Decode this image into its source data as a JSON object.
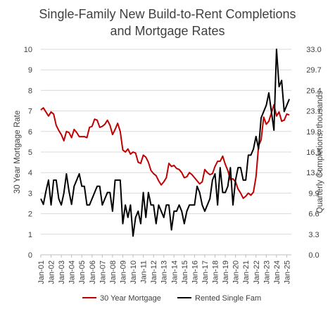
{
  "chart_data": {
    "type": "line",
    "title_lines": [
      "Single-Family New Build-to-Rent Completions",
      "and Mortgage Rates"
    ],
    "ylabel_left": "30 Year Mortgage Rate",
    "ylabel_right": "Quarterly Completions, thousands",
    "ylim_left": [
      0,
      10
    ],
    "ylim_right": [
      0,
      33
    ],
    "yticks_left": [
      "0",
      "1",
      "2",
      "3",
      "4",
      "5",
      "6",
      "7",
      "8",
      "9",
      "10"
    ],
    "yticks_right": [
      "0.0",
      "3.3",
      "6.6",
      "9.9",
      "13.2",
      "16.5",
      "19.8",
      "23.1",
      "26.4",
      "29.7",
      "33.0"
    ],
    "xlim": [
      2001,
      2025.45
    ],
    "xtick_labels": [
      "Jan-01",
      "Jan-02",
      "Jan-03",
      "Jan-04",
      "Jan-05",
      "Jan-06",
      "Jan-07",
      "Jan-08",
      "Jan-09",
      "Jan-10",
      "Jan-11",
      "Jan-12",
      "Jan-13",
      "Jan-14",
      "Jan-15",
      "Jan-16",
      "Jan-17",
      "Jan-18",
      "Jan-19",
      "Jan-20",
      "Jan-21",
      "Jan-22",
      "Jan-23",
      "Jan-24",
      "Jan-25"
    ],
    "grid": true,
    "legend_position": "bottom",
    "series": [
      {
        "name": "30 Year Mortgage",
        "axis": "left",
        "color": "#c00000",
        "points": [
          [
            2001.0,
            7.05
          ],
          [
            2001.25,
            7.15
          ],
          [
            2001.5,
            6.95
          ],
          [
            2001.75,
            6.75
          ],
          [
            2002.0,
            6.95
          ],
          [
            2002.25,
            6.85
          ],
          [
            2002.5,
            6.3
          ],
          [
            2002.75,
            6.05
          ],
          [
            2003.0,
            5.85
          ],
          [
            2003.25,
            5.55
          ],
          [
            2003.5,
            6.0
          ],
          [
            2003.75,
            5.95
          ],
          [
            2004.0,
            5.7
          ],
          [
            2004.25,
            6.1
          ],
          [
            2004.5,
            5.95
          ],
          [
            2004.75,
            5.75
          ],
          [
            2005.0,
            5.75
          ],
          [
            2005.25,
            5.75
          ],
          [
            2005.5,
            5.7
          ],
          [
            2005.75,
            6.2
          ],
          [
            2006.0,
            6.25
          ],
          [
            2006.25,
            6.6
          ],
          [
            2006.5,
            6.55
          ],
          [
            2006.75,
            6.2
          ],
          [
            2007.0,
            6.25
          ],
          [
            2007.25,
            6.35
          ],
          [
            2007.5,
            6.55
          ],
          [
            2007.75,
            6.3
          ],
          [
            2008.0,
            5.85
          ],
          [
            2008.25,
            6.1
          ],
          [
            2008.5,
            6.4
          ],
          [
            2008.75,
            6.0
          ],
          [
            2009.0,
            5.1
          ],
          [
            2009.25,
            5.0
          ],
          [
            2009.5,
            5.15
          ],
          [
            2009.75,
            4.9
          ],
          [
            2010.0,
            5.0
          ],
          [
            2010.25,
            4.95
          ],
          [
            2010.5,
            4.5
          ],
          [
            2010.75,
            4.45
          ],
          [
            2011.0,
            4.85
          ],
          [
            2011.25,
            4.75
          ],
          [
            2011.5,
            4.5
          ],
          [
            2011.75,
            4.1
          ],
          [
            2012.0,
            3.95
          ],
          [
            2012.25,
            3.85
          ],
          [
            2012.5,
            3.6
          ],
          [
            2012.75,
            3.4
          ],
          [
            2013.0,
            3.55
          ],
          [
            2013.25,
            3.75
          ],
          [
            2013.5,
            4.45
          ],
          [
            2013.75,
            4.3
          ],
          [
            2014.0,
            4.35
          ],
          [
            2014.25,
            4.2
          ],
          [
            2014.5,
            4.15
          ],
          [
            2014.75,
            4.0
          ],
          [
            2015.0,
            3.75
          ],
          [
            2015.25,
            3.8
          ],
          [
            2015.5,
            4.0
          ],
          [
            2015.75,
            3.9
          ],
          [
            2016.0,
            3.75
          ],
          [
            2016.25,
            3.6
          ],
          [
            2016.5,
            3.45
          ],
          [
            2016.75,
            3.55
          ],
          [
            2017.0,
            4.15
          ],
          [
            2017.25,
            4.0
          ],
          [
            2017.5,
            3.9
          ],
          [
            2017.75,
            3.95
          ],
          [
            2018.0,
            4.3
          ],
          [
            2018.25,
            4.55
          ],
          [
            2018.5,
            4.55
          ],
          [
            2018.75,
            4.8
          ],
          [
            2019.0,
            4.4
          ],
          [
            2019.25,
            4.1
          ],
          [
            2019.5,
            3.65
          ],
          [
            2019.75,
            3.7
          ],
          [
            2020.0,
            3.55
          ],
          [
            2020.25,
            3.2
          ],
          [
            2020.5,
            3.0
          ],
          [
            2020.75,
            2.75
          ],
          [
            2021.0,
            2.85
          ],
          [
            2021.25,
            3.0
          ],
          [
            2021.5,
            2.9
          ],
          [
            2021.75,
            3.05
          ],
          [
            2022.0,
            3.8
          ],
          [
            2022.25,
            5.3
          ],
          [
            2022.5,
            5.6
          ],
          [
            2022.75,
            6.7
          ],
          [
            2023.0,
            6.35
          ],
          [
            2023.25,
            6.5
          ],
          [
            2023.5,
            6.9
          ],
          [
            2023.75,
            7.3
          ],
          [
            2024.0,
            6.75
          ],
          [
            2024.25,
            6.95
          ],
          [
            2024.5,
            6.5
          ],
          [
            2024.75,
            6.55
          ],
          [
            2025.0,
            6.85
          ],
          [
            2025.25,
            6.8
          ]
        ]
      },
      {
        "name": "Rented Single Fam",
        "axis": "right",
        "color": "#000000",
        "points": [
          [
            2001.0,
            9.0
          ],
          [
            2001.25,
            8.1
          ],
          [
            2001.5,
            10.2
          ],
          [
            2001.75,
            12.0
          ],
          [
            2002.0,
            8.0
          ],
          [
            2002.25,
            12.0
          ],
          [
            2002.5,
            12.0
          ],
          [
            2002.75,
            9.0
          ],
          [
            2003.0,
            8.0
          ],
          [
            2003.25,
            9.9
          ],
          [
            2003.5,
            13.0
          ],
          [
            2003.75,
            10.2
          ],
          [
            2004.0,
            8.1
          ],
          [
            2004.25,
            11.0
          ],
          [
            2004.5,
            12.0
          ],
          [
            2004.75,
            13.0
          ],
          [
            2005.0,
            11.0
          ],
          [
            2005.25,
            11.0
          ],
          [
            2005.5,
            8.0
          ],
          [
            2005.75,
            8.0
          ],
          [
            2006.0,
            9.0
          ],
          [
            2006.25,
            10.0
          ],
          [
            2006.5,
            11.0
          ],
          [
            2006.75,
            11.0
          ],
          [
            2007.0,
            8.0
          ],
          [
            2007.25,
            9.0
          ],
          [
            2007.5,
            10.0
          ],
          [
            2007.75,
            10.0
          ],
          [
            2008.0,
            7.0
          ],
          [
            2008.25,
            12.0
          ],
          [
            2008.5,
            12.0
          ],
          [
            2008.75,
            12.0
          ],
          [
            2009.0,
            5.0
          ],
          [
            2009.25,
            8.0
          ],
          [
            2009.5,
            6.0
          ],
          [
            2009.75,
            8.0
          ],
          [
            2010.0,
            3.0
          ],
          [
            2010.25,
            6.0
          ],
          [
            2010.5,
            7.0
          ],
          [
            2010.75,
            5.0
          ],
          [
            2011.0,
            10.0
          ],
          [
            2011.25,
            6.0
          ],
          [
            2011.5,
            10.0
          ],
          [
            2011.75,
            8.0
          ],
          [
            2012.0,
            8.0
          ],
          [
            2012.25,
            5.0
          ],
          [
            2012.5,
            8.0
          ],
          [
            2012.75,
            7.0
          ],
          [
            2013.0,
            6.0
          ],
          [
            2013.25,
            8.0
          ],
          [
            2013.5,
            8.0
          ],
          [
            2013.75,
            4.0
          ],
          [
            2014.0,
            7.0
          ],
          [
            2014.25,
            7.0
          ],
          [
            2014.5,
            8.0
          ],
          [
            2014.75,
            7.0
          ],
          [
            2015.0,
            5.0
          ],
          [
            2015.25,
            7.0
          ],
          [
            2015.5,
            8.0
          ],
          [
            2015.75,
            8.0
          ],
          [
            2016.0,
            8.0
          ],
          [
            2016.25,
            11.0
          ],
          [
            2016.5,
            10.0
          ],
          [
            2016.75,
            8.0
          ],
          [
            2017.0,
            7.0
          ],
          [
            2017.25,
            8.0
          ],
          [
            2017.5,
            9.0
          ],
          [
            2017.75,
            12.0
          ],
          [
            2018.0,
            13.0
          ],
          [
            2018.25,
            8.0
          ],
          [
            2018.5,
            14.0
          ],
          [
            2018.75,
            10.0
          ],
          [
            2019.0,
            10.0
          ],
          [
            2019.25,
            11.0
          ],
          [
            2019.5,
            14.0
          ],
          [
            2019.75,
            8.0
          ],
          [
            2020.0,
            12.0
          ],
          [
            2020.25,
            14.0
          ],
          [
            2020.5,
            14.0
          ],
          [
            2020.75,
            12.0
          ],
          [
            2021.0,
            12.0
          ],
          [
            2021.25,
            16.0
          ],
          [
            2021.5,
            16.0
          ],
          [
            2021.75,
            17.0
          ],
          [
            2022.0,
            19.0
          ],
          [
            2022.25,
            17.0
          ],
          [
            2022.5,
            22.0
          ],
          [
            2022.75,
            23.0
          ],
          [
            2023.0,
            24.0
          ],
          [
            2023.25,
            26.0
          ],
          [
            2023.5,
            23.0
          ],
          [
            2023.75,
            20.0
          ],
          [
            2024.0,
            33.0
          ],
          [
            2024.25,
            27.0
          ],
          [
            2024.5,
            28.0
          ],
          [
            2024.75,
            23.0
          ],
          [
            2025.0,
            24.0
          ],
          [
            2025.25,
            25.0
          ]
        ]
      }
    ]
  }
}
